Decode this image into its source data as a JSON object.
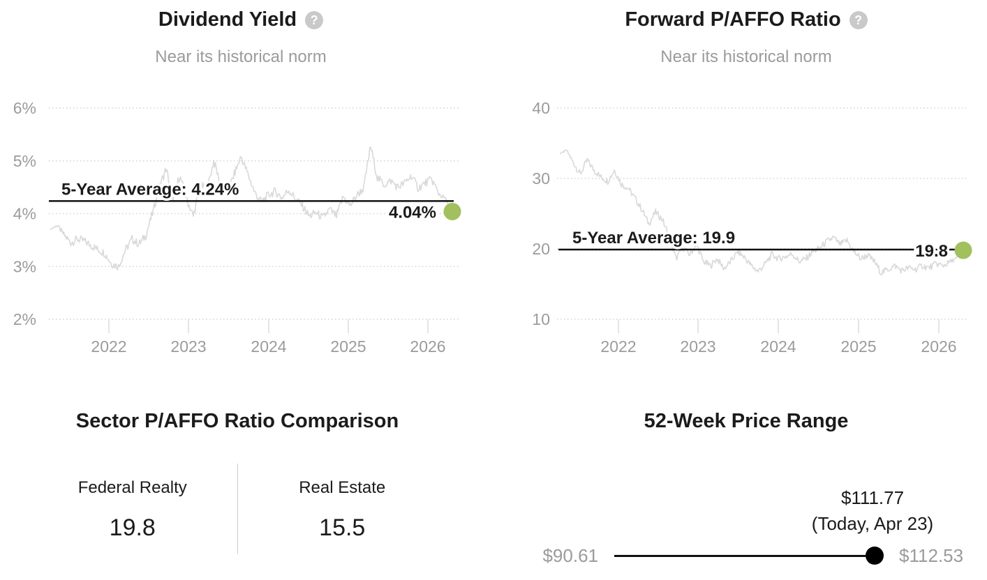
{
  "colors": {
    "accent_green": "#a2c05e",
    "series_line": "#d9d9d9",
    "average_line": "#111111",
    "grid": "#d4d4d4",
    "tick": "#dcdcdc",
    "muted_text": "#9b9b9b",
    "dark_text": "#1b1b1b",
    "help_icon_bg": "#c9c9c9",
    "range_dot": "#000000"
  },
  "help_icon_glyph": "?",
  "chart_data": [
    {
      "type": "line",
      "title": "Dividend Yield",
      "subtitle": "Near its historical norm",
      "unit": "percent",
      "x_start": "2021-05",
      "x_end": "2026-04",
      "x_tick_labels": [
        "2022",
        "2023",
        "2024",
        "2025",
        "2026"
      ],
      "y_tick_labels": [
        "6%",
        "5%",
        "4%",
        "3%",
        "2%"
      ],
      "y_tick_values": [
        6,
        5,
        4,
        3,
        2
      ],
      "ylim": [
        2,
        6
      ],
      "grid": "dotted-horizontal",
      "legend_position": "none",
      "average": 4.24,
      "average_label": "5-Year Average: 4.24%",
      "current": 4.04,
      "current_label": "4.04%",
      "values_monthly": [
        3.7,
        3.78,
        3.6,
        3.45,
        3.52,
        3.48,
        3.4,
        3.32,
        3.25,
        3.05,
        3.0,
        3.3,
        3.52,
        3.42,
        3.58,
        4.0,
        4.5,
        4.85,
        4.3,
        4.72,
        4.28,
        3.95,
        4.55,
        4.45,
        5.0,
        4.55,
        4.4,
        4.75,
        5.08,
        4.75,
        4.4,
        4.22,
        4.35,
        4.42,
        4.3,
        4.45,
        4.28,
        4.15,
        3.95,
        4.02,
        3.92,
        4.08,
        3.95,
        4.32,
        4.15,
        4.35,
        4.48,
        5.28,
        4.68,
        4.55,
        4.62,
        4.5,
        4.58,
        4.72,
        4.48,
        4.58,
        4.65,
        4.38,
        4.28,
        4.04
      ]
    },
    {
      "type": "line",
      "title": "Forward P/AFFO Ratio",
      "subtitle": "Near its historical norm",
      "unit": "ratio",
      "x_start": "2021-05",
      "x_end": "2026-04",
      "x_tick_labels": [
        "2022",
        "2023",
        "2024",
        "2025",
        "2026"
      ],
      "y_tick_labels": [
        "40",
        "30",
        "20",
        "10"
      ],
      "y_tick_values": [
        40,
        30,
        20,
        10
      ],
      "ylim": [
        10,
        40
      ],
      "grid": "dotted-horizontal",
      "legend_position": "none",
      "average": 19.9,
      "average_label": "5-Year Average: 19.9",
      "current": 19.8,
      "current_label": "19.8",
      "values_monthly": [
        33.5,
        34.0,
        32.2,
        30.6,
        32.6,
        31.2,
        30.2,
        29.6,
        31.2,
        29.2,
        28.6,
        27.2,
        25.6,
        23.6,
        25.2,
        24.2,
        21.6,
        18.6,
        20.2,
        19.2,
        20.6,
        18.2,
        17.6,
        18.6,
        17.2,
        18.2,
        19.6,
        18.8,
        17.6,
        16.8,
        17.8,
        19.2,
        18.6,
        18.9,
        19.3,
        18.2,
        18.6,
        19.6,
        20.1,
        21.0,
        21.6,
        20.6,
        21.2,
        19.6,
        18.6,
        19.1,
        18.2,
        16.6,
        17.1,
        17.6,
        16.9,
        17.3,
        17.1,
        17.6,
        17.3,
        17.9,
        17.6,
        18.1,
        18.7,
        19.8
      ]
    }
  ],
  "sector_comparison": {
    "title": "Sector P/AFFO Ratio Comparison",
    "items": [
      {
        "label": "Federal Realty",
        "value": "19.8"
      },
      {
        "label": "Real Estate",
        "value": "15.5"
      }
    ]
  },
  "price_range": {
    "title": "52-Week Price Range",
    "low": "$90.61",
    "high": "$112.53",
    "current": "$111.77",
    "current_sub": "(Today, Apr 23)"
  }
}
